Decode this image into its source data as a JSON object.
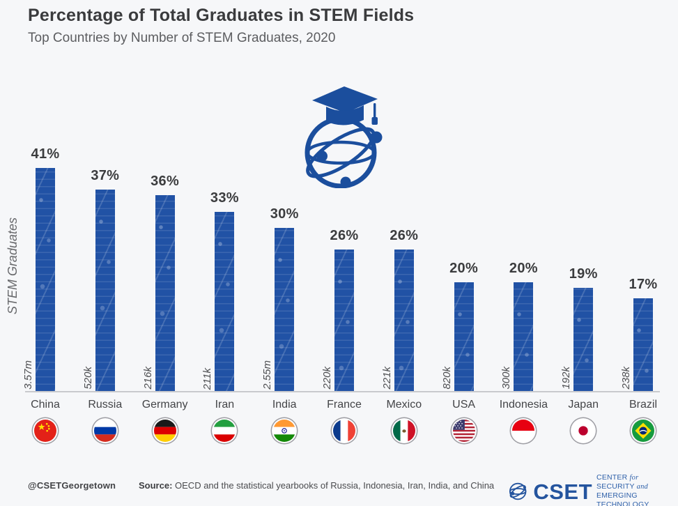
{
  "chart_data": {
    "type": "bar",
    "title": "Percentage of Total Graduates in STEM Fields",
    "subtitle": "Top Countries by Number of STEM Graduates, 2020",
    "ylabel": "STEM Graduates",
    "value_unit": "%",
    "categories": [
      "China",
      "Russia",
      "Germany",
      "Iran",
      "India",
      "France",
      "Mexico",
      "USA",
      "Indonesia",
      "Japan",
      "Brazil"
    ],
    "values": [
      41,
      37,
      36,
      33,
      30,
      26,
      26,
      20,
      20,
      19,
      17
    ],
    "pct_labels": [
      "41%",
      "37%",
      "36%",
      "33%",
      "30%",
      "26%",
      "26%",
      "20%",
      "20%",
      "19%",
      "17%"
    ],
    "counts": [
      "3.57m",
      "520k",
      "216k",
      "211k",
      "2.55m",
      "220k",
      "221k",
      "820k",
      "300k",
      "192k",
      "238k"
    ],
    "flag_icons": [
      "flag-china-icon",
      "flag-russia-icon",
      "flag-germany-icon",
      "flag-iran-icon",
      "flag-india-icon",
      "flag-france-icon",
      "flag-mexico-icon",
      "flag-usa-icon",
      "flag-indonesia-icon",
      "flag-japan-icon",
      "flag-brazil-icon"
    ],
    "bar_color": "#2152a5",
    "grid": "off",
    "legend": "none",
    "center_icon": "graduation-cap-globe-icon"
  },
  "footer": {
    "handle": "@CSETGeorgetown",
    "source_label": "Source:",
    "source_text": " OECD and the statistical yearbooks of Russia, Indonesia, Iran, India, and China",
    "logo": {
      "icon": "cset-globe-icon",
      "acronym": "CSET",
      "tag1_a": "CENTER ",
      "tag1_b": "for",
      "tag1_c": " SECURITY ",
      "tag1_d": "and",
      "tag2": "EMERGING TECHNOLOGY"
    }
  },
  "colors": {
    "background": "#f6f7f9",
    "bar_blue": "#2152a5",
    "accent_blue": "#1b4e9d",
    "title_text": "#3a3b3d",
    "baseline": "#c8c9cd"
  }
}
